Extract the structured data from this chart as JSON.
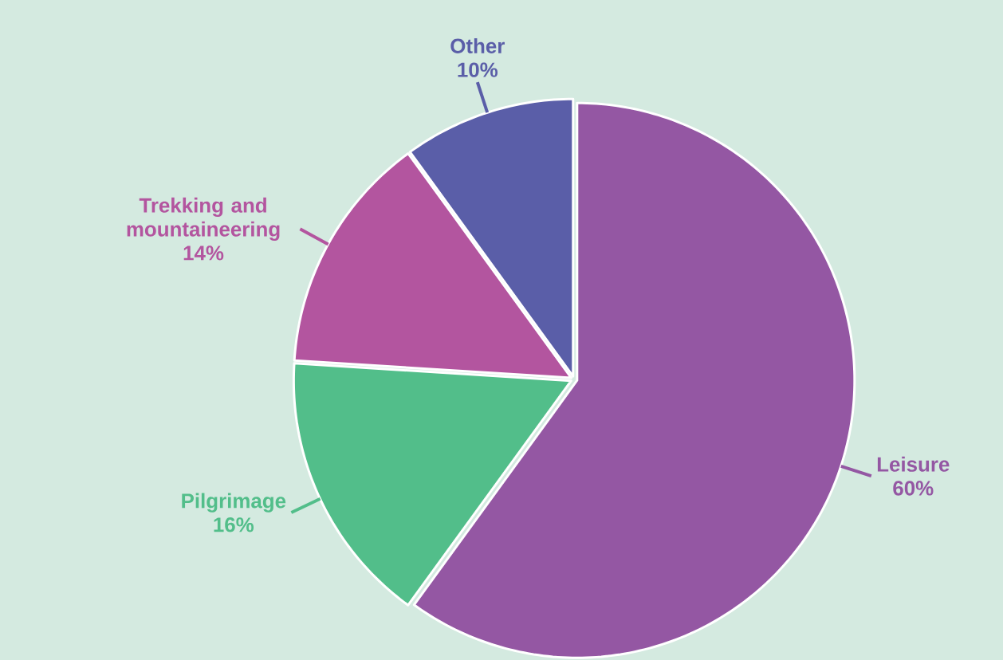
{
  "chart_data": {
    "type": "pie",
    "categories": [
      "Leisure",
      "Pilgrimage",
      "Trekking and mountaineering",
      "Other"
    ],
    "values": [
      60,
      16,
      14,
      10
    ],
    "value_labels": [
      "60%",
      "16%",
      "14%",
      "10%"
    ],
    "colors": [
      "#9457a3",
      "#52be8a",
      "#b3559f",
      "#5a5ea8"
    ]
  }
}
